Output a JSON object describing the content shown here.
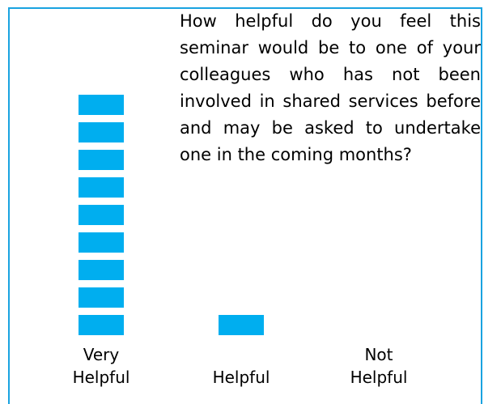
{
  "chart_data": {
    "type": "bar",
    "title": "How helpful do you feel this seminar would be to one of your colleagues who has not been involved in shared services before and may be asked to undertake one in the coming months?",
    "categories": [
      "Very Helpful",
      "Helpful",
      "Not Helpful"
    ],
    "values": [
      9,
      1,
      0
    ],
    "color": "#00aeef"
  }
}
